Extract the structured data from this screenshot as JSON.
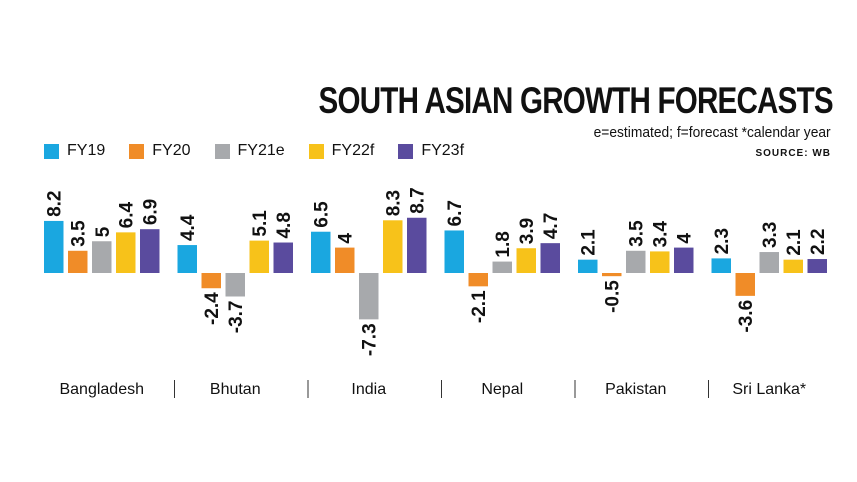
{
  "title": "SOUTH ASIAN GROWTH FORECASTS",
  "note": "e=estimated; f=forecast *calendar year",
  "source": "SOURCE: WB",
  "chart_data": {
    "type": "bar",
    "categories": [
      "Bangladesh",
      "Bhutan",
      "India",
      "Nepal",
      "Pakistan",
      "Sri Lanka*"
    ],
    "series": [
      {
        "name": "FY19",
        "color": "#1aa7e0",
        "values": [
          8.2,
          4.4,
          6.5,
          6.7,
          2.1,
          2.3
        ]
      },
      {
        "name": "FY20",
        "color": "#f08c28",
        "values": [
          3.5,
          -2.4,
          4,
          -2.1,
          -0.5,
          -3.6
        ]
      },
      {
        "name": "FY21e",
        "color": "#a7a9ac",
        "values": [
          5,
          -3.7,
          -7.3,
          1.8,
          3.5,
          3.3
        ]
      },
      {
        "name": "FY22f",
        "color": "#f7c21a",
        "values": [
          6.4,
          5.1,
          8.3,
          3.9,
          3.4,
          2.1
        ]
      },
      {
        "name": "FY23f",
        "color": "#5a4b9e",
        "values": [
          6.9,
          4.8,
          8.7,
          4.7,
          4,
          2.2
        ]
      }
    ],
    "value_labels": [
      [
        "8.2",
        "4.4",
        "6.5",
        "6.7",
        "2.1",
        "2.3"
      ],
      [
        "3.5",
        "-2.4",
        "4",
        "-2.1",
        "-0.5",
        "-3.6"
      ],
      [
        "5",
        "-3.7",
        "-7.3",
        "1.8",
        "3.5",
        "3.3"
      ],
      [
        "6.4",
        "5.1",
        "8.3",
        "3.9",
        "3.4",
        "2.1"
      ],
      [
        "6.9",
        "4.8",
        "8.7",
        "4.7",
        "4",
        "2.2"
      ]
    ],
    "title": "SOUTH ASIAN GROWTH FORECASTS",
    "xlabel": "",
    "ylabel": "",
    "grid": false,
    "legend_position": "top-left"
  }
}
